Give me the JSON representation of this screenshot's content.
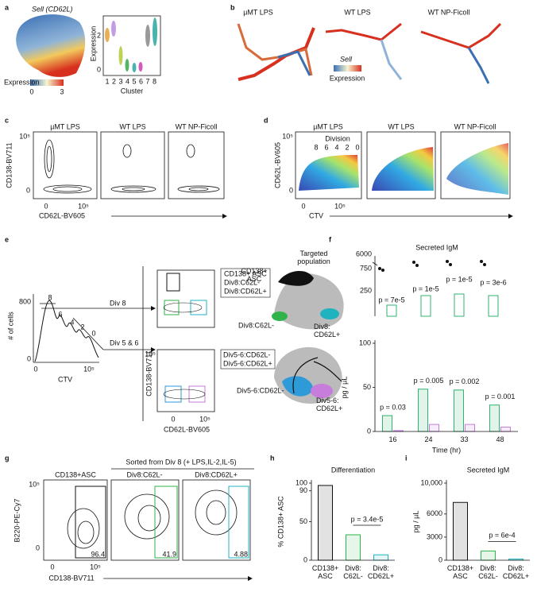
{
  "figure": {
    "a": {
      "label": "a",
      "gene": "Sell (CD62L)",
      "colorbar_label": "Expression",
      "colorbar_ticks": [
        0,
        3
      ],
      "violin_ylabel": "Expression",
      "violin_yticks": [
        2,
        0
      ],
      "clusters": [
        1,
        2,
        3,
        4,
        5,
        6,
        7,
        8
      ],
      "violin_xlabel": "Cluster"
    },
    "b": {
      "label": "b",
      "titles": [
        "µMT LPS",
        "WT LPS",
        "WT NP-Ficoll"
      ],
      "legend_gene": "Sell",
      "legend_label": "Expression"
    },
    "c": {
      "label": "c",
      "titles": [
        "µMT LPS",
        "WT LPS",
        "WT NP-Ficoll"
      ],
      "ylabel": "CD138-BV711",
      "xlabel": "CD62L-BV605",
      "yticks": [
        "10⁵",
        0
      ],
      "xticks": [
        0,
        "10⁵"
      ]
    },
    "d": {
      "label": "d",
      "titles": [
        "µMT LPS",
        "WT LPS",
        "WT NP-Ficoll"
      ],
      "division_label": "Division",
      "divisions": [
        8,
        6,
        4,
        2,
        0
      ],
      "ylabel": "CD62L-BV605",
      "xlabel": "CTV",
      "yticks": [
        "10⁵",
        0
      ],
      "xticks": [
        0,
        "10⁵"
      ]
    },
    "e": {
      "label": "e",
      "hist_ylabel": "# of cells",
      "hist_yticks": [
        800,
        0
      ],
      "hist_xticks": [
        0,
        "10⁵"
      ],
      "hist_xlabel": "CTV",
      "peaks": [
        8,
        6,
        4,
        2,
        0
      ],
      "gates": [
        "Div 8",
        "Div 5 & 6"
      ],
      "ylabel": "CD138-BV711",
      "xlabel": "CD62L-BV605",
      "yticks": [
        "10⁵"
      ],
      "xticks": [
        0,
        "10⁵"
      ],
      "gates_top": [
        "CD138+ ASC",
        "Div8:C62L-",
        "Div8:CD62L+"
      ],
      "gates_bottom": [
        "Div5-6:CD62L-",
        "Div5-6:CD62L+"
      ],
      "tsne_title": "Targeted population",
      "tsne_top": [
        "CD138+ ASC",
        "Div8:C62L-",
        "Div8: CD62L+"
      ],
      "tsne_bottom": [
        "Div5-6:CD62L-",
        "Div5-6: CD62L+"
      ]
    },
    "f": {
      "label": "f",
      "title": "Secreted IgM",
      "top_yticks": [
        6000,
        750,
        250
      ],
      "top_pvalues": [
        "p = 7e-5",
        "p = 1e-5",
        "p = 1e-5",
        "p = 3e-6"
      ]
    },
    "g": {
      "label": "g",
      "header": "Sorted from Div 8 (+ LPS,IL-2,IL-5)",
      "titles": [
        "CD138+ASC",
        "Div8:C62L-",
        "Div8:CD62L+"
      ],
      "gate_percents": [
        96.4,
        41.9,
        4.88
      ],
      "ylabel": "B220-PE-Cy7",
      "xlabel": "CD138-BV711",
      "yticks": [
        "10⁵",
        0
      ],
      "xticks": [
        0,
        "10⁵"
      ]
    },
    "h": {
      "label": "h"
    },
    "i": {
      "label": "i"
    }
  },
  "chart_data": [
    {
      "type": "bar",
      "ylabel": "pg / µL",
      "xlabel": "Time (hr)",
      "categories": [
        "16",
        "24",
        "33",
        "48"
      ],
      "series": [
        {
          "color": "#2fb36e",
          "values": [
            18,
            48,
            47,
            30
          ]
        },
        {
          "color": "#c77ddb",
          "values": [
            1,
            8,
            8,
            5
          ]
        }
      ],
      "ylim": [
        0,
        100
      ],
      "yticks": [
        0,
        50,
        100
      ],
      "annotations": [
        "p = 0.03",
        "p = 0.005",
        "p = 0.002",
        "p = 0.001"
      ]
    },
    {
      "type": "bar",
      "title": "Differentiation",
      "ylabel": "% CD138+ ASC",
      "categories": [
        "CD138+ ASC",
        "Div8: C62L-",
        "Div8: CD62L+"
      ],
      "values": [
        97,
        33,
        7
      ],
      "colors": [
        "#111111",
        "#2fb34a",
        "#1fb3c0"
      ],
      "ylim": [
        0,
        100
      ],
      "yticks": [
        0,
        50,
        90,
        100
      ],
      "annotations": [
        "p = 3.4e-5"
      ]
    },
    {
      "type": "bar",
      "title": "Secreted IgM",
      "ylabel": "pg / µL",
      "categories": [
        "CD138+ ASC",
        "Div8: C62L-",
        "Div8: CD62L+"
      ],
      "values": [
        7500,
        1200,
        150
      ],
      "colors": [
        "#111111",
        "#2fb34a",
        "#1fb3c0"
      ],
      "ylim": [
        0,
        10000
      ],
      "yticks": [
        0,
        3000,
        6000,
        {
          "value": 10000,
          "label": "10,000"
        }
      ],
      "annotations": [
        "p = 6e-4"
      ]
    }
  ]
}
